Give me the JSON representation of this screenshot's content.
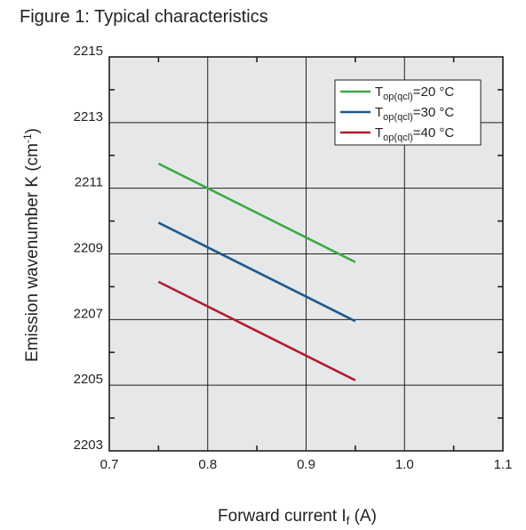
{
  "figure": {
    "title": "Figure 1: Typical characteristics"
  },
  "chart_data": {
    "type": "line",
    "xlabel": {
      "main": "Forward current I",
      "sub": "f",
      "suffix": " (A)"
    },
    "ylabel": {
      "main": "Emission wavenumber K (cm",
      "sup": "-1",
      "suffix": ")"
    },
    "xlim": [
      0.7,
      1.1
    ],
    "ylim": [
      2203,
      2215
    ],
    "x_ticks": [
      0.7,
      0.8,
      0.9,
      1.0,
      1.1
    ],
    "x_tick_labels": [
      "0.7",
      "0.8",
      "0.9",
      "1.0",
      "1.1"
    ],
    "y_ticks": [
      2203,
      2205,
      2207,
      2209,
      2211,
      2213,
      2215
    ],
    "y_tick_labels": [
      "2203",
      "2205",
      "2207",
      "2209",
      "2211",
      "2213",
      "2215"
    ],
    "grid": true,
    "legend_position": "top-right",
    "series": [
      {
        "name_main": "T",
        "name_sub": "op(qcl)",
        "name_suffix": "=20 °C",
        "color": "#3aaa46",
        "x": [
          0.75,
          0.95
        ],
        "y": [
          2211.75,
          2208.75
        ]
      },
      {
        "name_main": "T",
        "name_sub": "op(qcl)",
        "name_suffix": "=30 °C",
        "color": "#1f5a8c",
        "x": [
          0.75,
          0.95
        ],
        "y": [
          2209.95,
          2206.95
        ]
      },
      {
        "name_main": "T",
        "name_sub": "op(qcl)",
        "name_suffix": "=40 °C",
        "color": "#b01c2c",
        "x": [
          0.75,
          0.95
        ],
        "y": [
          2208.15,
          2205.15
        ]
      }
    ]
  }
}
